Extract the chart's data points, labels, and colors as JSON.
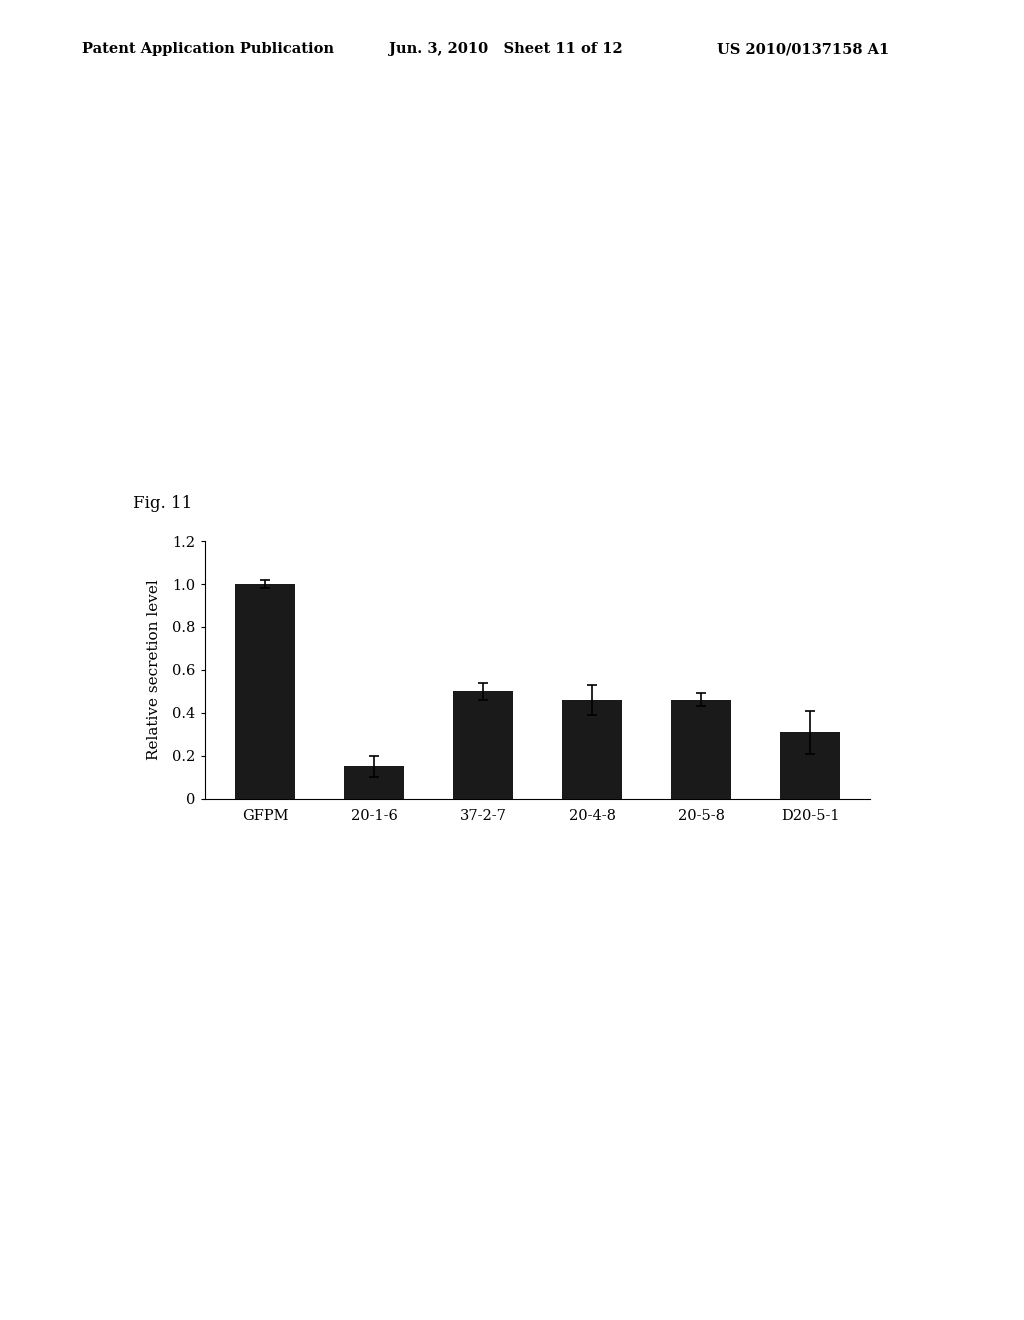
{
  "categories": [
    "GFPM",
    "20-1-6",
    "37-2-7",
    "20-4-8",
    "20-5-8",
    "D20-5-1"
  ],
  "values": [
    1.0,
    0.15,
    0.5,
    0.46,
    0.46,
    0.31
  ],
  "errors": [
    0.02,
    0.05,
    0.04,
    0.07,
    0.03,
    0.1
  ],
  "bar_color": "#1a1a1a",
  "ylabel": "Relative secretion level",
  "ylim": [
    0,
    1.2
  ],
  "yticks": [
    0,
    0.2,
    0.4,
    0.6,
    0.8,
    1.0,
    1.2
  ],
  "fig_label": "Fig. 11",
  "header_left": "Patent Application Publication",
  "header_center": "Jun. 3, 2010   Sheet 11 of 12",
  "header_right": "US 2010/0137158 A1",
  "background_color": "#ffffff",
  "bar_width": 0.55
}
